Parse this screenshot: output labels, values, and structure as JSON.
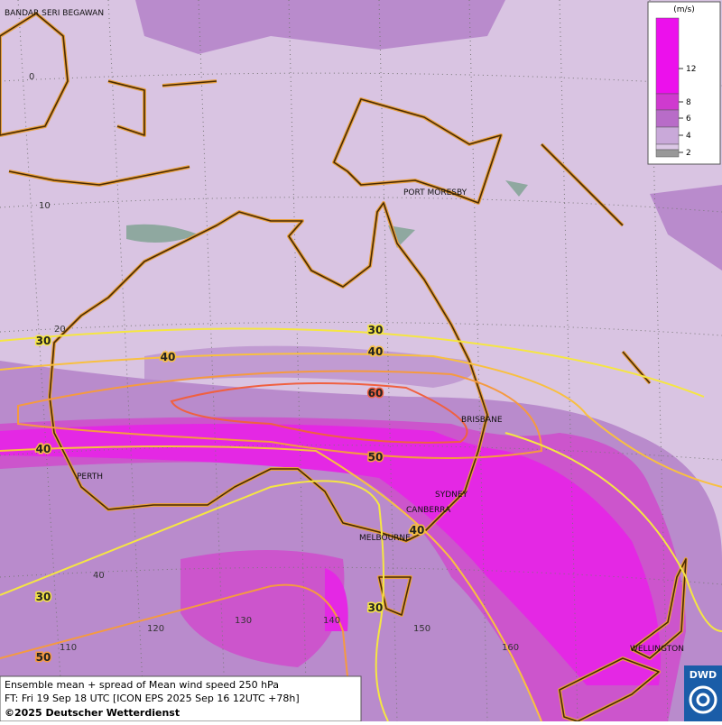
{
  "legend": {
    "unit": "(m/s)",
    "ticks": [
      12,
      8,
      6,
      4,
      2
    ],
    "colors": [
      "#ec10ec",
      "#cf3acf",
      "#b86cc8",
      "#c9a9d9",
      "#dcc8e6",
      "#999999"
    ]
  },
  "cities": [
    "BANDAR SERI BEGAWAN",
    "PORT MORESBY",
    "BRISBANE",
    "PERTH",
    "SYDNEY",
    "CANBERRA",
    "MELBOURNE",
    "WELLINGTON"
  ],
  "latitude_labels": [
    "0",
    "10",
    "20",
    "40"
  ],
  "longitude_labels": [
    "110",
    "120",
    "130",
    "140",
    "150",
    "160"
  ],
  "contour_labels": [
    "30",
    "30",
    "40",
    "40",
    "60",
    "40",
    "50",
    "40",
    "30",
    "30",
    "50"
  ],
  "footer": {
    "line1": "Ensemble mean + spread of Mean wind speed 250 hPa",
    "line2": "FT: Fri 19 Sep 18 UTC [ICON EPS 2025 Sep 16 12UTC +78h]",
    "copyright": "©2025 Deutscher Wetterdienst"
  },
  "logo": "DWD"
}
